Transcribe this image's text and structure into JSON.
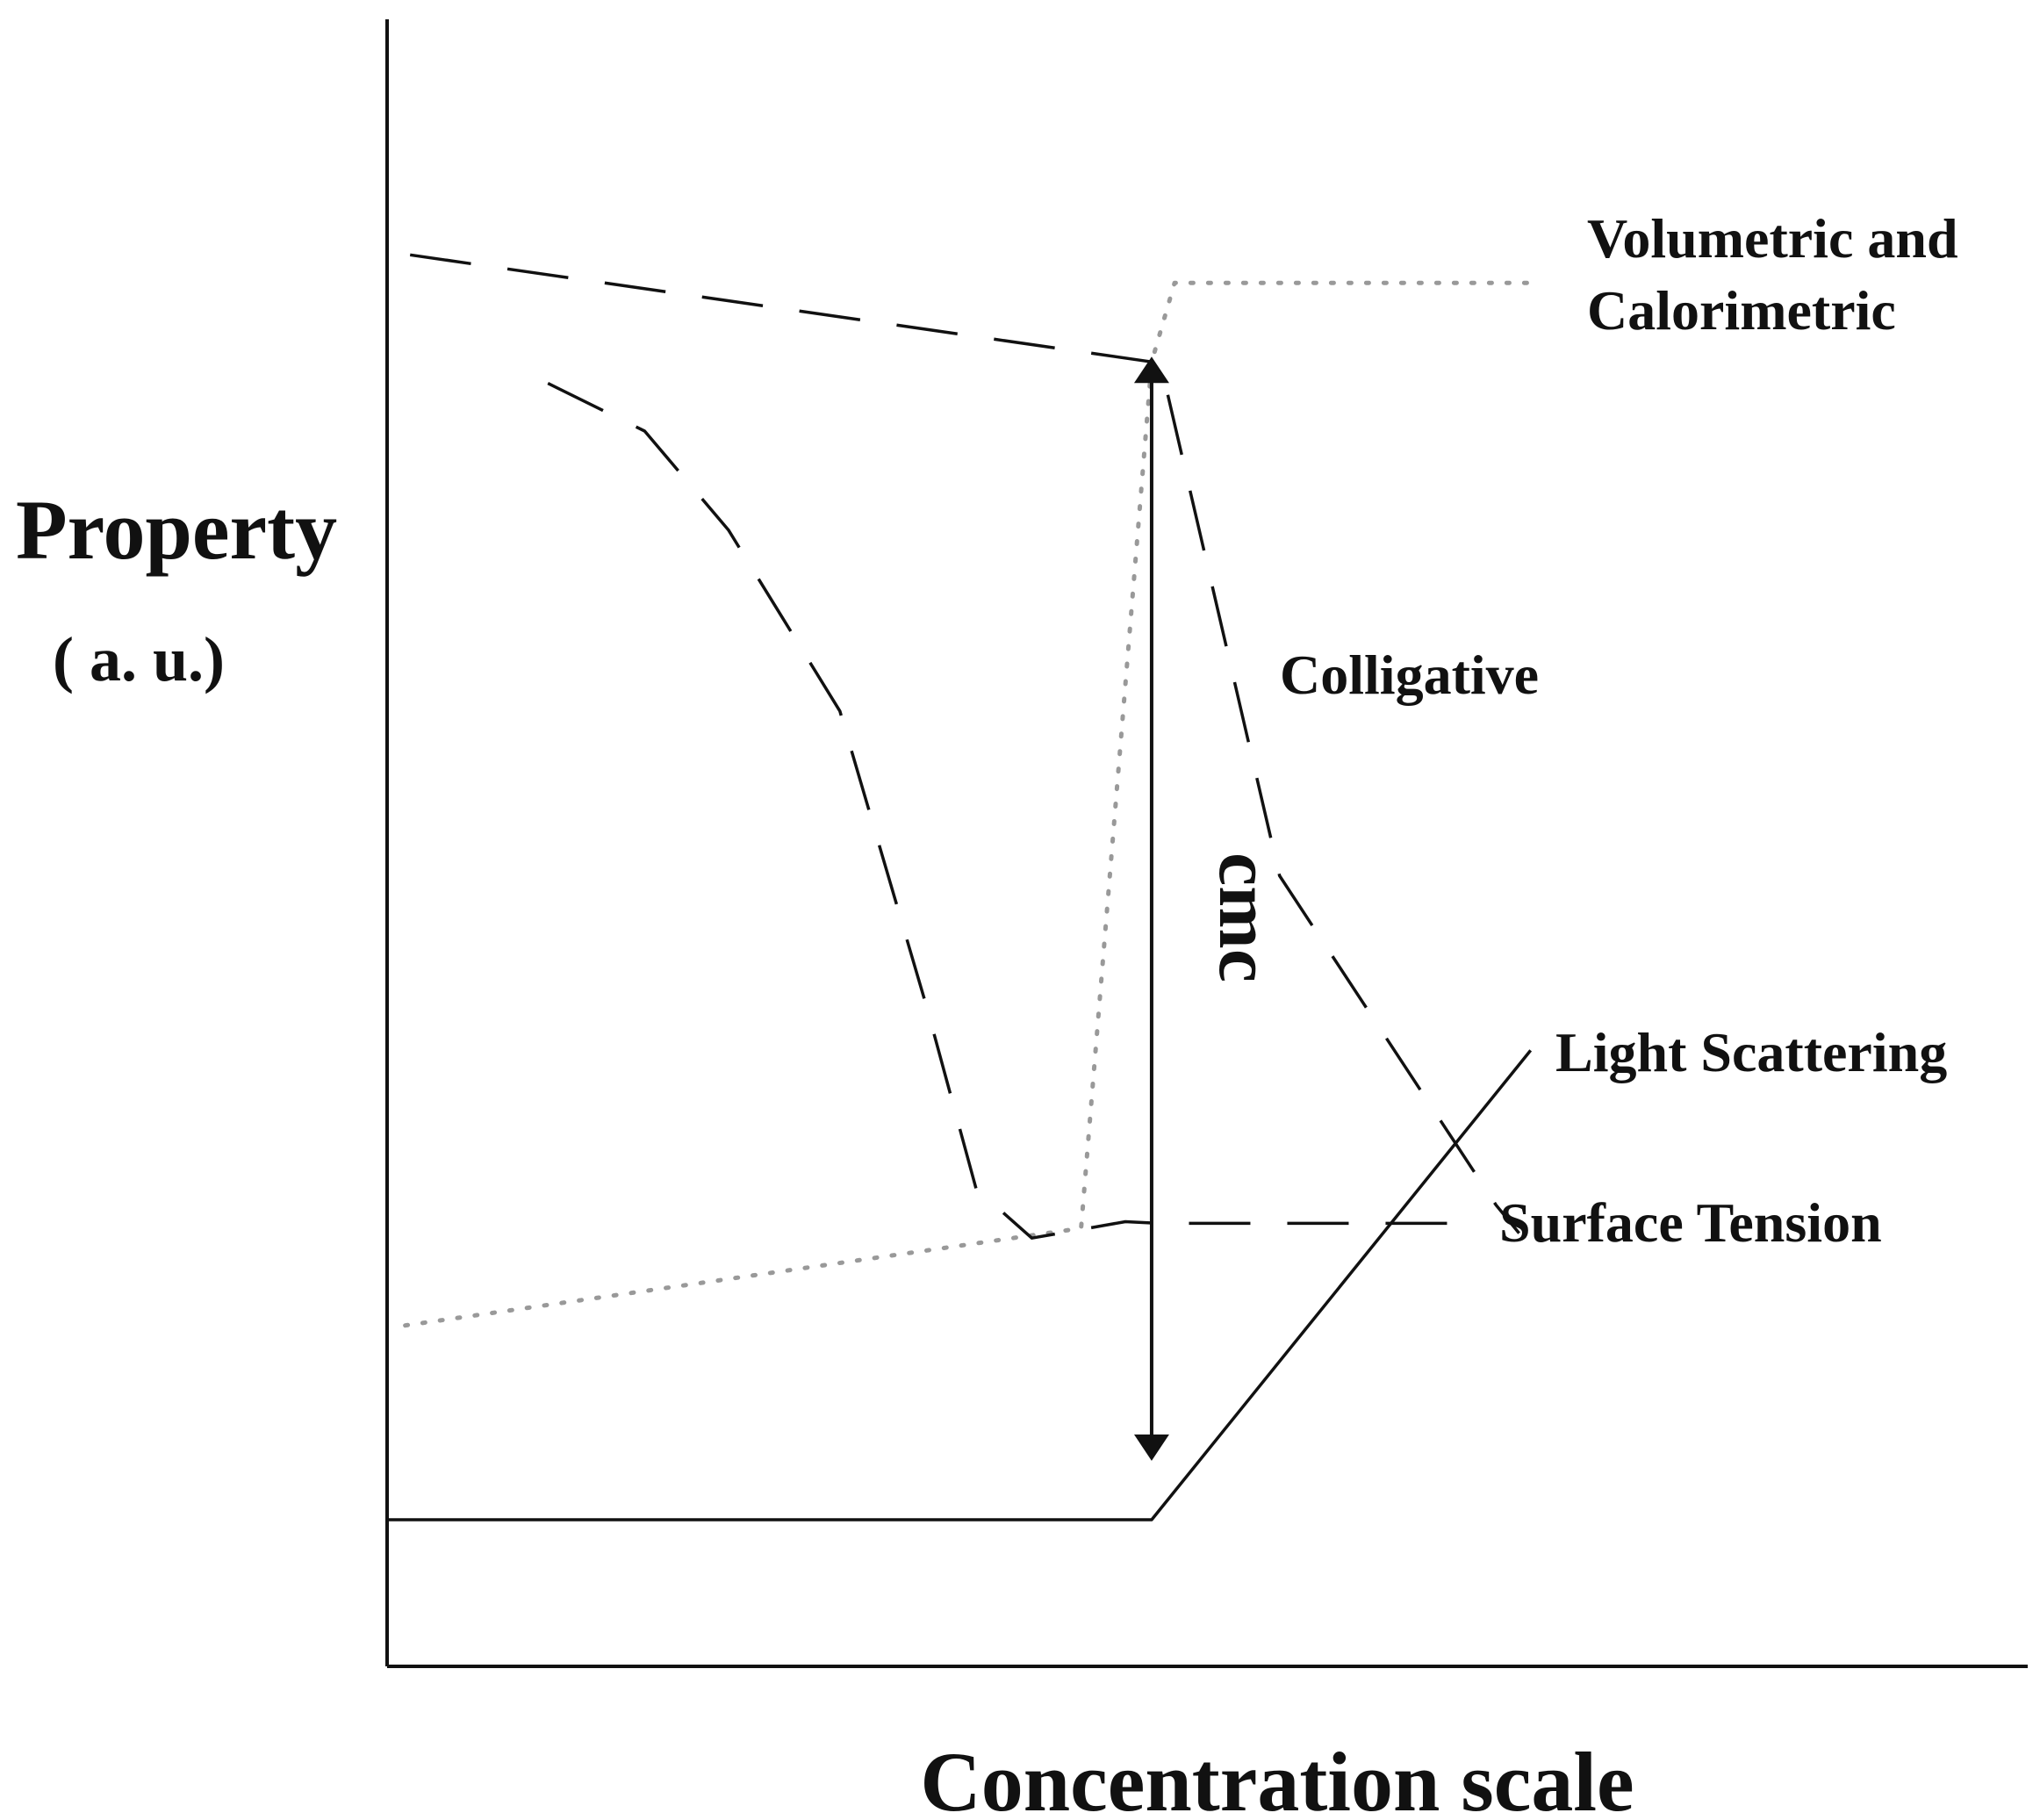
{
  "chart_data": {
    "type": "line",
    "title": "",
    "xlabel": "Concentration scale",
    "ylabel": "Property",
    "ylabel_unit": "( a. u.)",
    "xlim": [
      0,
      100
    ],
    "ylim": [
      0,
      100
    ],
    "grid": false,
    "legend": "none",
    "cmc_label": "cmc",
    "cmc_x": 46.6,
    "cmc_arrow_y": [
      12.8,
      79.2
    ],
    "series": [
      {
        "name": "Volumetric and Calorimetric",
        "style": "dotted",
        "color": "#999999",
        "x": [
          1.1,
          42.3,
          46.6,
          48.0,
          70.2
        ],
        "y": [
          20.7,
          26.6,
          79.2,
          84.0,
          84.0
        ]
      },
      {
        "name": "Colligative",
        "style": "dashed",
        "color": "#111111",
        "x": [
          1.4,
          46.6,
          47.4,
          54.4,
          67.6,
          69.0
        ],
        "y": [
          85.7,
          79.2,
          78.0,
          48.0,
          28.0,
          26.3
        ]
      },
      {
        "name": "Light Scattering",
        "style": "solid",
        "color": "#111111",
        "x": [
          0,
          46.6,
          69.7
        ],
        "y": [
          8.9,
          8.9,
          37.4
        ]
      },
      {
        "name": "Surface Tension",
        "style": "dashed",
        "color": "#111111",
        "x": [
          9.8,
          15.7,
          20.8,
          27.6,
          32.9,
          35.9,
          39.3,
          45.0,
          47.0,
          66.0
        ],
        "y": [
          77.9,
          75.0,
          69.0,
          58.0,
          40.0,
          29.0,
          26.0,
          27.0,
          26.9,
          26.9
        ]
      }
    ]
  }
}
